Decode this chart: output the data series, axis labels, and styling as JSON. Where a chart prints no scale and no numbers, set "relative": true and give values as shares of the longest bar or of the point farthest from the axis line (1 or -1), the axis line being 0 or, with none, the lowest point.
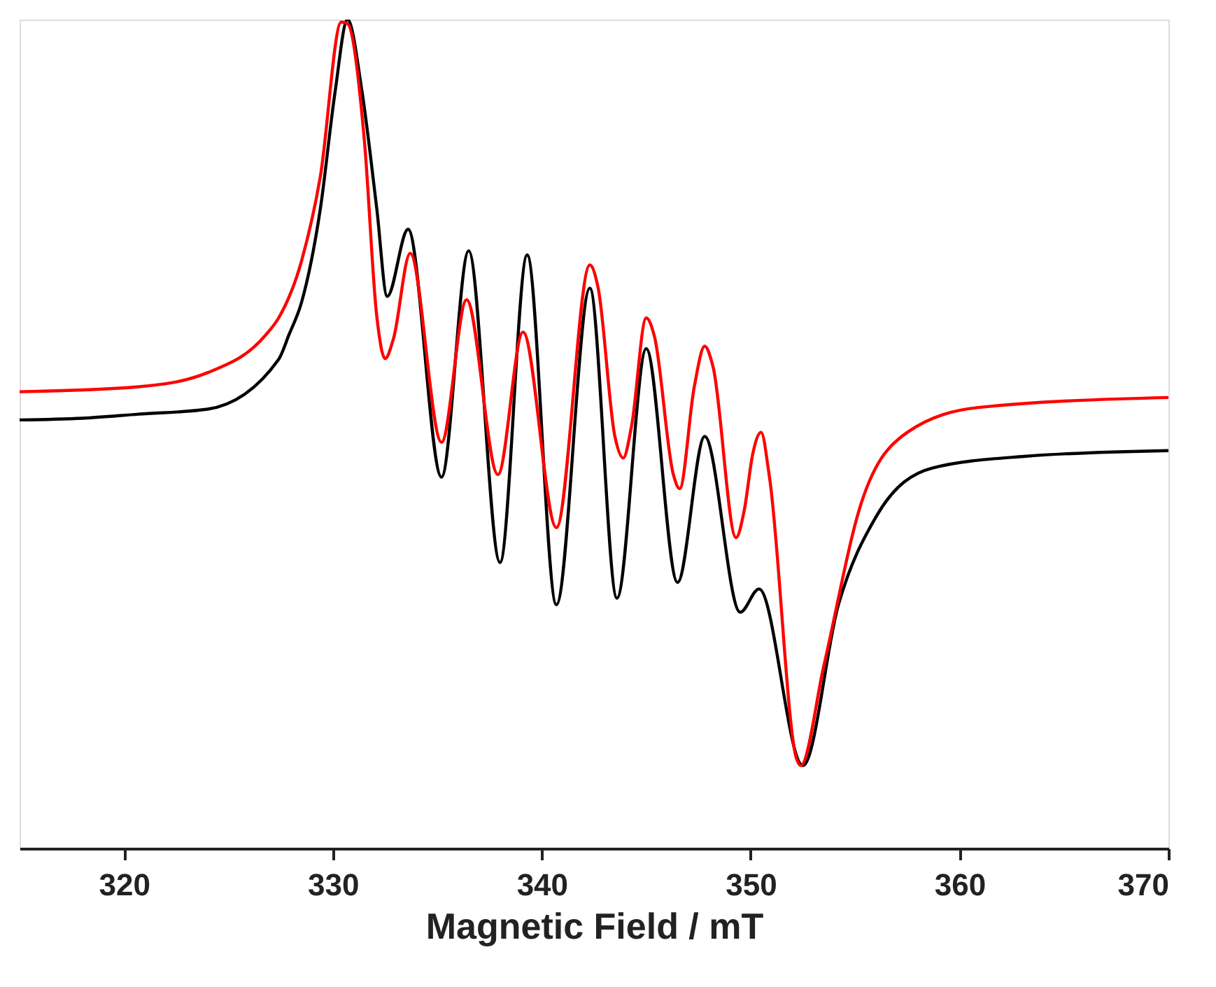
{
  "chart_data": {
    "type": "line",
    "relative": true,
    "xlabel": "Magnetic Field / mT",
    "xlim": [
      315,
      370
    ],
    "xticks": [
      320,
      330,
      340,
      350,
      360,
      370
    ],
    "grid": false,
    "legend": false,
    "line_style": "solid",
    "marker": "none",
    "tick_labels": "x",
    "series": [
      {
        "color": "#000000",
        "x": [
          315.0,
          318.0,
          320.7,
          324.0,
          327.4,
          327.9,
          328.5,
          329.4,
          330.1,
          330.7,
          331.4,
          332.1,
          332.6,
          333.6,
          335.2,
          336.5,
          338.0,
          339.3,
          340.7,
          342.3,
          343.6,
          345.0,
          346.5,
          347.8,
          349.5,
          350.4,
          352.5,
          354.2,
          356.0,
          358.7,
          363.1,
          370.0
        ],
        "values": [
          0.517,
          0.519,
          0.524,
          0.53,
          0.59,
          0.62,
          0.659,
          0.772,
          0.912,
          1.0,
          0.912,
          0.772,
          0.666,
          0.747,
          0.448,
          0.721,
          0.345,
          0.716,
          0.294,
          0.676,
          0.302,
          0.603,
          0.321,
          0.497,
          0.285,
          0.313,
          0.1,
          0.294,
          0.4,
          0.459,
          0.473,
          0.48
        ]
      },
      {
        "color": "#ff0000",
        "x": [
          315.0,
          320.7,
          324.0,
          326.8,
          327.4,
          328.5,
          329.4,
          330.4,
          330.7,
          331.5,
          332.1,
          332.5,
          332.9,
          333.7,
          335.2,
          336.4,
          337.9,
          339.1,
          340.7,
          342.3,
          342.7,
          343.5,
          343.9,
          344.3,
          345.0,
          345.4,
          346.3,
          346.6,
          347.3,
          347.8,
          348.2,
          349.3,
          349.7,
          350.1,
          350.5,
          350.9,
          352.2,
          352.4,
          353.5,
          355.3,
          357.5,
          360.9,
          370.0
        ],
        "values": [
          0.551,
          0.557,
          0.574,
          0.62,
          0.64,
          0.709,
          0.811,
          0.997,
          0.995,
          0.856,
          0.642,
          0.591,
          0.615,
          0.718,
          0.49,
          0.662,
          0.451,
          0.623,
          0.387,
          0.704,
          0.676,
          0.497,
          0.471,
          0.51,
          0.64,
          0.617,
          0.451,
          0.434,
          0.557,
          0.606,
          0.581,
          0.375,
          0.409,
          0.476,
          0.502,
          0.448,
          0.108,
          0.1,
          0.22,
          0.417,
          0.502,
          0.532,
          0.544
        ]
      }
    ]
  }
}
